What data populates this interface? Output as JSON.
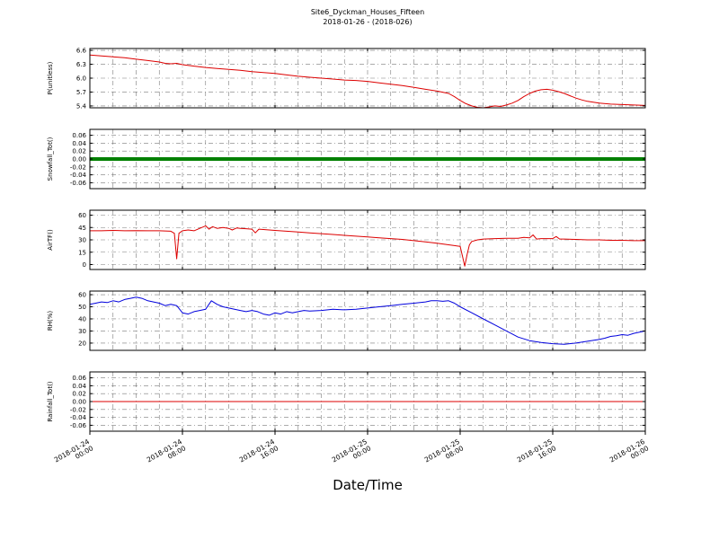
{
  "chart_data": {
    "type": "line",
    "title": "Site6_Dyckman_Houses_Fifteen",
    "subtitle": "2018-01-26 - (2018-026)",
    "xlabel": "Date/Time",
    "grid": true,
    "grid_color": "#7a7a7a",
    "x_range": [
      0,
      48
    ],
    "minor_x_step": 2,
    "xticks": {
      "positions": [
        0,
        8,
        16,
        24,
        32,
        40,
        48
      ],
      "labels": [
        [
          "2018-01-24",
          "00:00"
        ],
        [
          "2018-01-24",
          "08:00"
        ],
        [
          "2018-01-24",
          "16:00"
        ],
        [
          "2018-01-25",
          "00:00"
        ],
        [
          "2018-01-25",
          "08:00"
        ],
        [
          "2018-01-25",
          "16:00"
        ],
        [
          "2018-01-26",
          "00:00"
        ]
      ]
    },
    "panels": [
      {
        "id": "p-unitless",
        "ylabel": "P(unitless)",
        "ylim": [
          5.36,
          6.64
        ],
        "yticks": [
          5.4,
          5.7,
          6.0,
          6.3,
          6.6
        ],
        "ytick_labels": [
          "5.4",
          "5.7",
          "6.0",
          "6.3",
          "6.6"
        ],
        "series": {
          "name": "P(unitless)",
          "color": "#dd0000",
          "width": 1,
          "points": [
            [
              0,
              6.5
            ],
            [
              1,
              6.48
            ],
            [
              2,
              6.46
            ],
            [
              3,
              6.44
            ],
            [
              4,
              6.41
            ],
            [
              5,
              6.38
            ],
            [
              6,
              6.35
            ],
            [
              6.5,
              6.32
            ],
            [
              7,
              6.31
            ],
            [
              7.5,
              6.32
            ],
            [
              8,
              6.29
            ],
            [
              9,
              6.26
            ],
            [
              10,
              6.23
            ],
            [
              11,
              6.21
            ],
            [
              12,
              6.19
            ],
            [
              13,
              6.17
            ],
            [
              14,
              6.14
            ],
            [
              15,
              6.12
            ],
            [
              16,
              6.1
            ],
            [
              17,
              6.07
            ],
            [
              18,
              6.04
            ],
            [
              19,
              6.02
            ],
            [
              20,
              6.0
            ],
            [
              21,
              5.98
            ],
            [
              22,
              5.96
            ],
            [
              23,
              5.95
            ],
            [
              24,
              5.93
            ],
            [
              25,
              5.9
            ],
            [
              26,
              5.87
            ],
            [
              27,
              5.84
            ],
            [
              28,
              5.8
            ],
            [
              29,
              5.76
            ],
            [
              30,
              5.72
            ],
            [
              31,
              5.67
            ],
            [
              31.5,
              5.6
            ],
            [
              32,
              5.52
            ],
            [
              32.5,
              5.45
            ],
            [
              33,
              5.4
            ],
            [
              33.5,
              5.37
            ],
            [
              34,
              5.36
            ],
            [
              34.5,
              5.38
            ],
            [
              35,
              5.4
            ],
            [
              35.5,
              5.39
            ],
            [
              36,
              5.42
            ],
            [
              36.5,
              5.46
            ],
            [
              37,
              5.52
            ],
            [
              37.5,
              5.6
            ],
            [
              38,
              5.67
            ],
            [
              38.5,
              5.72
            ],
            [
              39,
              5.75
            ],
            [
              39.5,
              5.76
            ],
            [
              40,
              5.74
            ],
            [
              40.5,
              5.71
            ],
            [
              41,
              5.67
            ],
            [
              41.5,
              5.62
            ],
            [
              42,
              5.57
            ],
            [
              42.5,
              5.53
            ],
            [
              43,
              5.5
            ],
            [
              43.5,
              5.48
            ],
            [
              44,
              5.46
            ],
            [
              45,
              5.44
            ],
            [
              46,
              5.43
            ],
            [
              47,
              5.42
            ],
            [
              48,
              5.41
            ]
          ]
        }
      },
      {
        "id": "snowfall-tot",
        "ylabel": "Snowfall_Tot()",
        "ylim": [
          -0.075,
          0.075
        ],
        "yticks": [
          -0.06,
          -0.04,
          -0.02,
          0.0,
          0.02,
          0.04,
          0.06
        ],
        "ytick_labels": [
          "-0.06",
          "-0.04",
          "-0.02",
          "0.00",
          "0.02",
          "0.04",
          "0.06"
        ],
        "series": {
          "name": "Snowfall_Tot()",
          "color": "#008000",
          "width": 4,
          "points": [
            [
              0,
              0
            ],
            [
              48,
              0
            ]
          ]
        }
      },
      {
        "id": "airtf",
        "ylabel": "AirTF()",
        "ylim": [
          -6,
          66
        ],
        "yticks": [
          0,
          15,
          30,
          45,
          60
        ],
        "ytick_labels": [
          "0",
          "15",
          "30",
          "45",
          "60"
        ],
        "series": {
          "name": "AirTF()",
          "color": "#dd0000",
          "width": 1,
          "points": [
            [
              0,
              41
            ],
            [
              1,
              41
            ],
            [
              2,
              41.5
            ],
            [
              3,
              41
            ],
            [
              4,
              41.2
            ],
            [
              5,
              41
            ],
            [
              6,
              41
            ],
            [
              7,
              40.5
            ],
            [
              7.3,
              38
            ],
            [
              7.5,
              7
            ],
            [
              7.7,
              38
            ],
            [
              8,
              41
            ],
            [
              8.5,
              42
            ],
            [
              9,
              41
            ],
            [
              9.5,
              44
            ],
            [
              10,
              47
            ],
            [
              10.3,
              43
            ],
            [
              10.6,
              46
            ],
            [
              11,
              44
            ],
            [
              11.5,
              45
            ],
            [
              12,
              44
            ],
            [
              12.3,
              42
            ],
            [
              12.7,
              44.5
            ],
            [
              13,
              44
            ],
            [
              13.5,
              43.5
            ],
            [
              14,
              43
            ],
            [
              14.3,
              38.5
            ],
            [
              14.6,
              43
            ],
            [
              15,
              42.5
            ],
            [
              16,
              41.5
            ],
            [
              17,
              40.5
            ],
            [
              18,
              39.5
            ],
            [
              19,
              38.5
            ],
            [
              20,
              37.5
            ],
            [
              21,
              36.5
            ],
            [
              22,
              35.5
            ],
            [
              23,
              34.5
            ],
            [
              24,
              33.5
            ],
            [
              25,
              32.5
            ],
            [
              26,
              31.5
            ],
            [
              27,
              30.5
            ],
            [
              28,
              29
            ],
            [
              29,
              27.5
            ],
            [
              30,
              26
            ],
            [
              30.5,
              25
            ],
            [
              31,
              24
            ],
            [
              31.5,
              23
            ],
            [
              32,
              22
            ],
            [
              32.2,
              10
            ],
            [
              32.4,
              -2
            ],
            [
              32.6,
              12
            ],
            [
              32.8,
              24
            ],
            [
              33,
              28
            ],
            [
              33.5,
              30
            ],
            [
              34,
              31
            ],
            [
              35,
              31.5
            ],
            [
              36,
              32
            ],
            [
              37,
              32
            ],
            [
              37.5,
              33
            ],
            [
              38,
              32.5
            ],
            [
              38.3,
              36
            ],
            [
              38.6,
              31
            ],
            [
              39,
              31.5
            ],
            [
              40,
              31.5
            ],
            [
              40.3,
              34
            ],
            [
              40.6,
              31
            ],
            [
              41,
              31
            ],
            [
              42,
              30.5
            ],
            [
              43,
              30
            ],
            [
              44,
              30
            ],
            [
              45,
              29.5
            ],
            [
              46,
              29.5
            ],
            [
              47,
              29
            ],
            [
              48,
              29
            ]
          ]
        }
      },
      {
        "id": "rh",
        "ylabel": "RH(%)",
        "ylim": [
          14,
          63
        ],
        "yticks": [
          20,
          30,
          40,
          50,
          60
        ],
        "ytick_labels": [
          "20",
          "30",
          "40",
          "50",
          "60"
        ],
        "series": {
          "name": "RH(%)",
          "color": "#0000dd",
          "width": 1,
          "points": [
            [
              0,
              52
            ],
            [
              0.5,
              53
            ],
            [
              1,
              54
            ],
            [
              1.5,
              53.5
            ],
            [
              2,
              55
            ],
            [
              2.5,
              54
            ],
            [
              3,
              56
            ],
            [
              3.5,
              57
            ],
            [
              4,
              58
            ],
            [
              4.5,
              57
            ],
            [
              5,
              55
            ],
            [
              5.5,
              54
            ],
            [
              6,
              53
            ],
            [
              6.5,
              51
            ],
            [
              7,
              52
            ],
            [
              7.5,
              51
            ],
            [
              8,
              45
            ],
            [
              8.5,
              44
            ],
            [
              9,
              46
            ],
            [
              9.5,
              47
            ],
            [
              10,
              48
            ],
            [
              10.5,
              55
            ],
            [
              11,
              52
            ],
            [
              11.5,
              50
            ],
            [
              12,
              49
            ],
            [
              12.5,
              48
            ],
            [
              13,
              47
            ],
            [
              13.5,
              46
            ],
            [
              14,
              47
            ],
            [
              14.5,
              46
            ],
            [
              15,
              44
            ],
            [
              15.5,
              43
            ],
            [
              16,
              45
            ],
            [
              16.5,
              44
            ],
            [
              17,
              46
            ],
            [
              17.5,
              45
            ],
            [
              18,
              46
            ],
            [
              18.5,
              47
            ],
            [
              19,
              46.5
            ],
            [
              20,
              47
            ],
            [
              21,
              48
            ],
            [
              22,
              47.5
            ],
            [
              23,
              48
            ],
            [
              24,
              49
            ],
            [
              25,
              50
            ],
            [
              26,
              51
            ],
            [
              27,
              52
            ],
            [
              28,
              53
            ],
            [
              29,
              54
            ],
            [
              29.5,
              55
            ],
            [
              30,
              55
            ],
            [
              30.5,
              54.5
            ],
            [
              31,
              55
            ],
            [
              31.5,
              53
            ],
            [
              32,
              50
            ],
            [
              33,
              45
            ],
            [
              34,
              40
            ],
            [
              35,
              35
            ],
            [
              36,
              30
            ],
            [
              37,
              25
            ],
            [
              38,
              22
            ],
            [
              39,
              20.5
            ],
            [
              40,
              19.5
            ],
            [
              41,
              19
            ],
            [
              42,
              20
            ],
            [
              43,
              21.5
            ],
            [
              44,
              23
            ],
            [
              44.5,
              24
            ],
            [
              45,
              25.5
            ],
            [
              45.5,
              26
            ],
            [
              46,
              27
            ],
            [
              46.5,
              26.5
            ],
            [
              47,
              28
            ],
            [
              48,
              30
            ]
          ]
        }
      },
      {
        "id": "rainfall-tot",
        "ylabel": "Rainfall_Tot()",
        "ylim": [
          -0.075,
          0.075
        ],
        "yticks": [
          -0.06,
          -0.04,
          -0.02,
          0.0,
          0.02,
          0.04,
          0.06
        ],
        "ytick_labels": [
          "-0.06",
          "-0.04",
          "-0.02",
          "0.00",
          "0.02",
          "0.04",
          "0.06"
        ],
        "series": {
          "name": "Rainfall_Tot()",
          "color": "#dd0000",
          "width": 1,
          "points": [
            [
              0,
              0
            ],
            [
              48,
              0
            ]
          ]
        }
      }
    ]
  }
}
